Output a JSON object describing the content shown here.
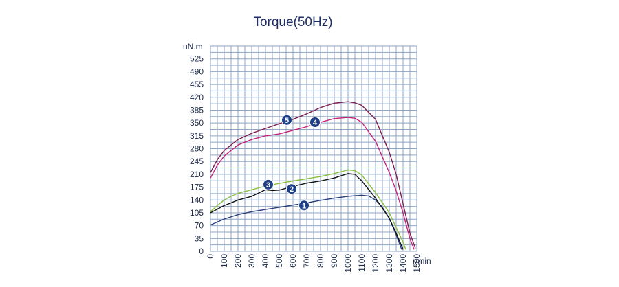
{
  "chart_data": {
    "type": "line",
    "title": "Torque(50Hz)",
    "ylabel": "uN.m",
    "xlabel": "r/min",
    "xlim": [
      0,
      1500
    ],
    "ylim": [
      0,
      560
    ],
    "x_ticks": [
      "0",
      "100",
      "200",
      "300",
      "400",
      "500",
      "600",
      "700",
      "800",
      "900",
      "1000",
      "1100",
      "1200",
      "1300",
      "1400",
      "1500"
    ],
    "y_ticks": [
      "0",
      "35",
      "70",
      "105",
      "140",
      "175",
      "210",
      "245",
      "280",
      "315",
      "350",
      "385",
      "420",
      "455",
      "490",
      "525"
    ],
    "grid": true,
    "series": [
      {
        "name": "1",
        "color": "#2a3f7a",
        "label_at": [
          680,
          125
        ],
        "x": [
          0,
          100,
          200,
          300,
          400,
          500,
          600,
          700,
          800,
          900,
          1000,
          1100,
          1150,
          1200,
          1250,
          1300,
          1350,
          1390
        ],
        "y": [
          72,
          88,
          100,
          108,
          114,
          120,
          126,
          132,
          139,
          145,
          150,
          153,
          151,
          140,
          120,
          90,
          45,
          5
        ]
      },
      {
        "name": "2",
        "color": "#111111",
        "label_at": [
          590,
          170
        ],
        "x": [
          0,
          50,
          100,
          150,
          200,
          300,
          400,
          450,
          500,
          600,
          700,
          800,
          900,
          1000,
          1050,
          1100,
          1200,
          1300,
          1350,
          1400
        ],
        "y": [
          105,
          115,
          125,
          132,
          140,
          150,
          168,
          166,
          167,
          177,
          186,
          192,
          200,
          212,
          210,
          192,
          145,
          90,
          50,
          5
        ]
      },
      {
        "name": "3",
        "color": "#8cbf3f",
        "label_at": [
          420,
          182
        ],
        "x": [
          0,
          50,
          100,
          150,
          200,
          300,
          400,
          500,
          600,
          700,
          800,
          900,
          1000,
          1050,
          1100,
          1200,
          1300,
          1350,
          1400,
          1420
        ],
        "y": [
          108,
          125,
          140,
          150,
          158,
          168,
          178,
          185,
          192,
          198,
          204,
          212,
          222,
          220,
          208,
          160,
          105,
          65,
          25,
          5
        ]
      },
      {
        "name": "4",
        "color": "#c2227a",
        "label_at": [
          760,
          352
        ],
        "x": [
          0,
          50,
          100,
          200,
          300,
          400,
          500,
          600,
          700,
          800,
          900,
          1000,
          1050,
          1100,
          1200,
          1300,
          1350,
          1400,
          1450,
          1480
        ],
        "y": [
          200,
          235,
          260,
          290,
          305,
          315,
          320,
          330,
          340,
          352,
          362,
          365,
          363,
          352,
          300,
          215,
          165,
          105,
          35,
          5
        ]
      },
      {
        "name": "5",
        "color": "#7d1e4e",
        "label_at": [
          555,
          358
        ],
        "x": [
          0,
          50,
          100,
          200,
          300,
          400,
          500,
          600,
          700,
          800,
          900,
          1000,
          1050,
          1100,
          1200,
          1300,
          1350,
          1400,
          1450,
          1490
        ],
        "y": [
          215,
          250,
          275,
          305,
          322,
          335,
          348,
          360,
          375,
          392,
          404,
          408,
          405,
          398,
          360,
          270,
          210,
          130,
          50,
          8
        ]
      }
    ]
  }
}
